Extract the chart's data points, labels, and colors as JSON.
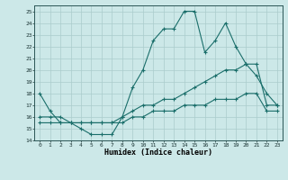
{
  "title": "",
  "xlabel": "Humidex (Indice chaleur)",
  "xlim": [
    -0.5,
    23.5
  ],
  "ylim": [
    14,
    25.5
  ],
  "yticks": [
    14,
    15,
    16,
    17,
    18,
    19,
    20,
    21,
    22,
    23,
    24,
    25
  ],
  "xticks": [
    0,
    1,
    2,
    3,
    4,
    5,
    6,
    7,
    8,
    9,
    10,
    11,
    12,
    13,
    14,
    15,
    16,
    17,
    18,
    19,
    20,
    21,
    22,
    23
  ],
  "bg_color": "#cce8e8",
  "line_color": "#1a6e6a",
  "grid_color": "#aacccc",
  "series": [
    {
      "x": [
        0,
        1,
        2,
        3,
        4,
        5,
        6,
        7,
        8,
        9,
        10,
        11,
        12,
        13,
        14,
        15,
        16,
        17,
        18,
        19,
        20,
        21,
        22,
        23
      ],
      "y": [
        18,
        16.5,
        15.5,
        15.5,
        15,
        14.5,
        14.5,
        14.5,
        16,
        18.5,
        20,
        22.5,
        23.5,
        23.5,
        25,
        25,
        21.5,
        22.5,
        24,
        22,
        20.5,
        19.5,
        18,
        17
      ]
    },
    {
      "x": [
        0,
        1,
        2,
        3,
        4,
        5,
        6,
        7,
        8,
        9,
        10,
        11,
        12,
        13,
        14,
        15,
        16,
        17,
        18,
        19,
        20,
        21,
        22,
        23
      ],
      "y": [
        16,
        16,
        16,
        15.5,
        15.5,
        15.5,
        15.5,
        15.5,
        16,
        16.5,
        17,
        17,
        17.5,
        17.5,
        18,
        18.5,
        19,
        19.5,
        20,
        20,
        20.5,
        20.5,
        17,
        17
      ]
    },
    {
      "x": [
        0,
        1,
        2,
        3,
        4,
        5,
        6,
        7,
        8,
        9,
        10,
        11,
        12,
        13,
        14,
        15,
        16,
        17,
        18,
        19,
        20,
        21,
        22,
        23
      ],
      "y": [
        15.5,
        15.5,
        15.5,
        15.5,
        15.5,
        15.5,
        15.5,
        15.5,
        15.5,
        16,
        16,
        16.5,
        16.5,
        16.5,
        17,
        17,
        17,
        17.5,
        17.5,
        17.5,
        18,
        18,
        16.5,
        16.5
      ]
    }
  ]
}
